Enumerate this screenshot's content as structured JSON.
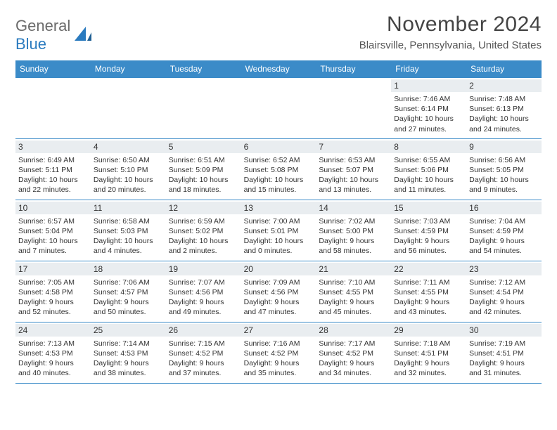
{
  "logo": {
    "part1": "General",
    "part2": "Blue"
  },
  "title": "November 2024",
  "location": "Blairsville, Pennsylvania, United States",
  "colors": {
    "header_bg": "#3b8bc8",
    "daynum_bg": "#e9edf0",
    "rule": "#3b8bc8",
    "logo_gray": "#6b6b6b",
    "logo_blue": "#2b7bbf"
  },
  "day_labels": [
    "Sunday",
    "Monday",
    "Tuesday",
    "Wednesday",
    "Thursday",
    "Friday",
    "Saturday"
  ],
  "weeks": [
    [
      {
        "n": "",
        "sunrise": "",
        "sunset": "",
        "daylight": ""
      },
      {
        "n": "",
        "sunrise": "",
        "sunset": "",
        "daylight": ""
      },
      {
        "n": "",
        "sunrise": "",
        "sunset": "",
        "daylight": ""
      },
      {
        "n": "",
        "sunrise": "",
        "sunset": "",
        "daylight": ""
      },
      {
        "n": "",
        "sunrise": "",
        "sunset": "",
        "daylight": ""
      },
      {
        "n": "1",
        "sunrise": "Sunrise: 7:46 AM",
        "sunset": "Sunset: 6:14 PM",
        "daylight": "Daylight: 10 hours and 27 minutes."
      },
      {
        "n": "2",
        "sunrise": "Sunrise: 7:48 AM",
        "sunset": "Sunset: 6:13 PM",
        "daylight": "Daylight: 10 hours and 24 minutes."
      }
    ],
    [
      {
        "n": "3",
        "sunrise": "Sunrise: 6:49 AM",
        "sunset": "Sunset: 5:11 PM",
        "daylight": "Daylight: 10 hours and 22 minutes."
      },
      {
        "n": "4",
        "sunrise": "Sunrise: 6:50 AM",
        "sunset": "Sunset: 5:10 PM",
        "daylight": "Daylight: 10 hours and 20 minutes."
      },
      {
        "n": "5",
        "sunrise": "Sunrise: 6:51 AM",
        "sunset": "Sunset: 5:09 PM",
        "daylight": "Daylight: 10 hours and 18 minutes."
      },
      {
        "n": "6",
        "sunrise": "Sunrise: 6:52 AM",
        "sunset": "Sunset: 5:08 PM",
        "daylight": "Daylight: 10 hours and 15 minutes."
      },
      {
        "n": "7",
        "sunrise": "Sunrise: 6:53 AM",
        "sunset": "Sunset: 5:07 PM",
        "daylight": "Daylight: 10 hours and 13 minutes."
      },
      {
        "n": "8",
        "sunrise": "Sunrise: 6:55 AM",
        "sunset": "Sunset: 5:06 PM",
        "daylight": "Daylight: 10 hours and 11 minutes."
      },
      {
        "n": "9",
        "sunrise": "Sunrise: 6:56 AM",
        "sunset": "Sunset: 5:05 PM",
        "daylight": "Daylight: 10 hours and 9 minutes."
      }
    ],
    [
      {
        "n": "10",
        "sunrise": "Sunrise: 6:57 AM",
        "sunset": "Sunset: 5:04 PM",
        "daylight": "Daylight: 10 hours and 7 minutes."
      },
      {
        "n": "11",
        "sunrise": "Sunrise: 6:58 AM",
        "sunset": "Sunset: 5:03 PM",
        "daylight": "Daylight: 10 hours and 4 minutes."
      },
      {
        "n": "12",
        "sunrise": "Sunrise: 6:59 AM",
        "sunset": "Sunset: 5:02 PM",
        "daylight": "Daylight: 10 hours and 2 minutes."
      },
      {
        "n": "13",
        "sunrise": "Sunrise: 7:00 AM",
        "sunset": "Sunset: 5:01 PM",
        "daylight": "Daylight: 10 hours and 0 minutes."
      },
      {
        "n": "14",
        "sunrise": "Sunrise: 7:02 AM",
        "sunset": "Sunset: 5:00 PM",
        "daylight": "Daylight: 9 hours and 58 minutes."
      },
      {
        "n": "15",
        "sunrise": "Sunrise: 7:03 AM",
        "sunset": "Sunset: 4:59 PM",
        "daylight": "Daylight: 9 hours and 56 minutes."
      },
      {
        "n": "16",
        "sunrise": "Sunrise: 7:04 AM",
        "sunset": "Sunset: 4:59 PM",
        "daylight": "Daylight: 9 hours and 54 minutes."
      }
    ],
    [
      {
        "n": "17",
        "sunrise": "Sunrise: 7:05 AM",
        "sunset": "Sunset: 4:58 PM",
        "daylight": "Daylight: 9 hours and 52 minutes."
      },
      {
        "n": "18",
        "sunrise": "Sunrise: 7:06 AM",
        "sunset": "Sunset: 4:57 PM",
        "daylight": "Daylight: 9 hours and 50 minutes."
      },
      {
        "n": "19",
        "sunrise": "Sunrise: 7:07 AM",
        "sunset": "Sunset: 4:56 PM",
        "daylight": "Daylight: 9 hours and 49 minutes."
      },
      {
        "n": "20",
        "sunrise": "Sunrise: 7:09 AM",
        "sunset": "Sunset: 4:56 PM",
        "daylight": "Daylight: 9 hours and 47 minutes."
      },
      {
        "n": "21",
        "sunrise": "Sunrise: 7:10 AM",
        "sunset": "Sunset: 4:55 PM",
        "daylight": "Daylight: 9 hours and 45 minutes."
      },
      {
        "n": "22",
        "sunrise": "Sunrise: 7:11 AM",
        "sunset": "Sunset: 4:55 PM",
        "daylight": "Daylight: 9 hours and 43 minutes."
      },
      {
        "n": "23",
        "sunrise": "Sunrise: 7:12 AM",
        "sunset": "Sunset: 4:54 PM",
        "daylight": "Daylight: 9 hours and 42 minutes."
      }
    ],
    [
      {
        "n": "24",
        "sunrise": "Sunrise: 7:13 AM",
        "sunset": "Sunset: 4:53 PM",
        "daylight": "Daylight: 9 hours and 40 minutes."
      },
      {
        "n": "25",
        "sunrise": "Sunrise: 7:14 AM",
        "sunset": "Sunset: 4:53 PM",
        "daylight": "Daylight: 9 hours and 38 minutes."
      },
      {
        "n": "26",
        "sunrise": "Sunrise: 7:15 AM",
        "sunset": "Sunset: 4:52 PM",
        "daylight": "Daylight: 9 hours and 37 minutes."
      },
      {
        "n": "27",
        "sunrise": "Sunrise: 7:16 AM",
        "sunset": "Sunset: 4:52 PM",
        "daylight": "Daylight: 9 hours and 35 minutes."
      },
      {
        "n": "28",
        "sunrise": "Sunrise: 7:17 AM",
        "sunset": "Sunset: 4:52 PM",
        "daylight": "Daylight: 9 hours and 34 minutes."
      },
      {
        "n": "29",
        "sunrise": "Sunrise: 7:18 AM",
        "sunset": "Sunset: 4:51 PM",
        "daylight": "Daylight: 9 hours and 32 minutes."
      },
      {
        "n": "30",
        "sunrise": "Sunrise: 7:19 AM",
        "sunset": "Sunset: 4:51 PM",
        "daylight": "Daylight: 9 hours and 31 minutes."
      }
    ]
  ]
}
